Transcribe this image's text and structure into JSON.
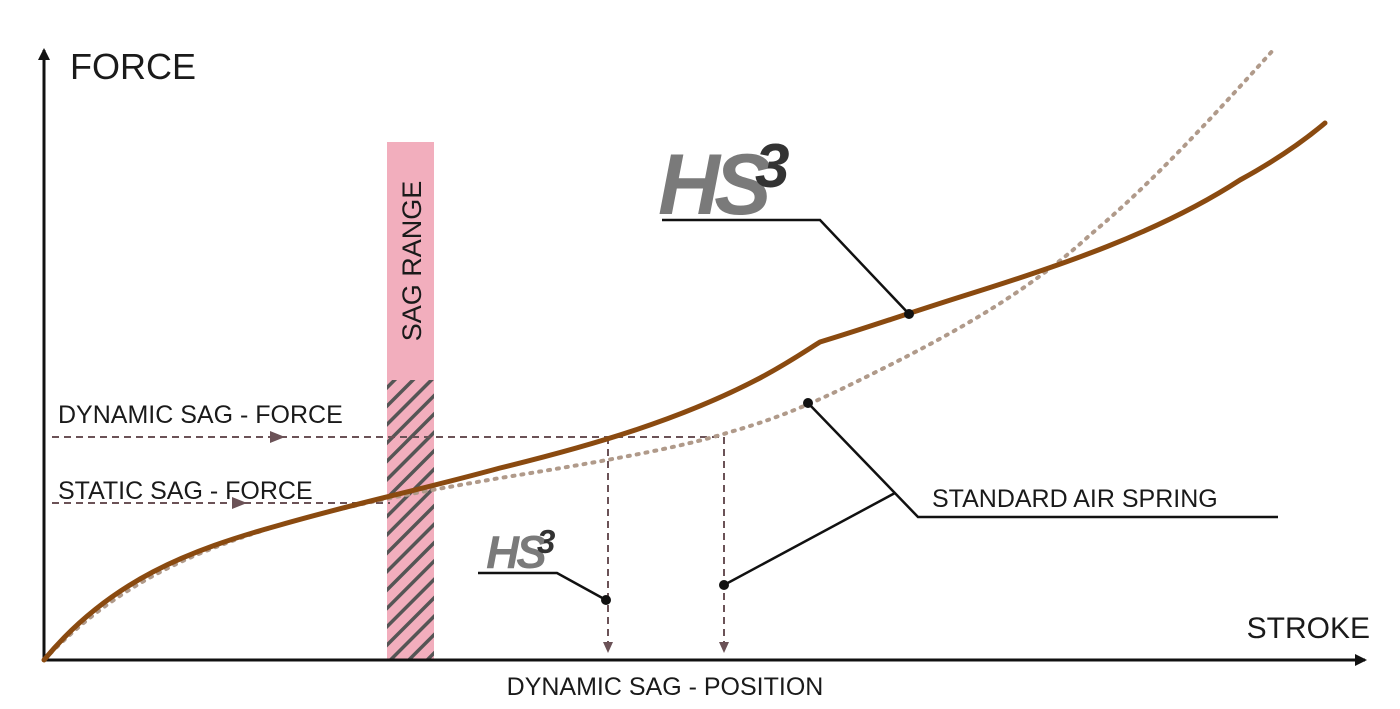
{
  "axes": {
    "y_label": "FORCE",
    "x_label": "STROKE"
  },
  "sag_range": {
    "label": "SAG RANGE",
    "fill_color": "#f2aebd",
    "hatch_color": "#555555"
  },
  "guides": {
    "dynamic_sag_force": "DYNAMIC SAG - FORCE",
    "static_sag_force": "STATIC SAG - FORCE",
    "dynamic_sag_position": "DYNAMIC SAG - POSITION"
  },
  "curves": {
    "hs3": {
      "brand": "HS",
      "superscript": "3",
      "color": "#8a4a10",
      "style": "solid"
    },
    "standard": {
      "label": "STANDARD AIR SPRING",
      "color": "#b09a8a",
      "style": "dotted"
    }
  },
  "colors": {
    "axis": "#111111",
    "guide": "#6b5257",
    "logo_gray": "#7a7a7a",
    "logo_dark": "#333333"
  }
}
